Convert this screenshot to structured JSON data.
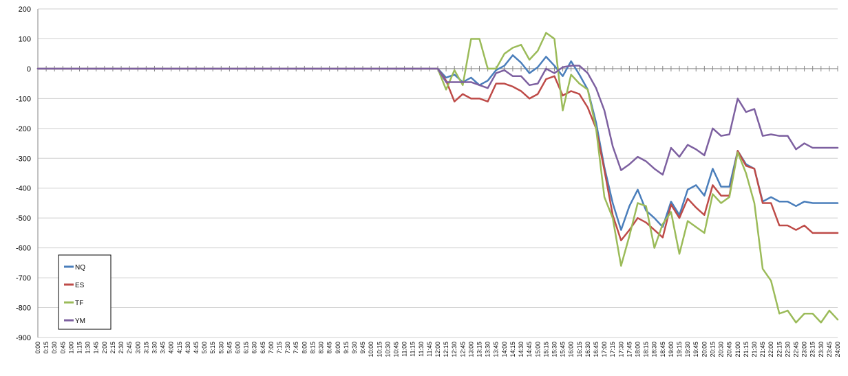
{
  "chart_data": {
    "type": "line",
    "title": "",
    "xlabel": "",
    "ylabel": "",
    "ylim": [
      -900,
      200
    ],
    "yticks": [
      200,
      100,
      0,
      -100,
      -200,
      -300,
      -400,
      -500,
      -600,
      -700,
      -800,
      -900
    ],
    "grid": "horizontal",
    "legend_position": "bottom-left",
    "x": [
      "0:00",
      "0:15",
      "0:30",
      "0:45",
      "1:00",
      "1:15",
      "1:30",
      "1:45",
      "2:00",
      "2:15",
      "2:30",
      "2:45",
      "3:00",
      "3:15",
      "3:30",
      "3:45",
      "4:00",
      "4:15",
      "4:30",
      "4:45",
      "5:00",
      "5:15",
      "5:30",
      "5:45",
      "6:00",
      "6:15",
      "6:30",
      "6:45",
      "7:00",
      "7:15",
      "7:30",
      "7:45",
      "8:00",
      "8:15",
      "8:30",
      "8:45",
      "9:00",
      "9:15",
      "9:30",
      "9:45",
      "10:00",
      "10:15",
      "10:30",
      "10:45",
      "11:00",
      "11:15",
      "11:30",
      "11:45",
      "12:00",
      "12:15",
      "12:30",
      "12:45",
      "13:00",
      "13:15",
      "13:30",
      "13:45",
      "14:00",
      "14:15",
      "14:30",
      "14:45",
      "15:00",
      "15:15",
      "15:30",
      "15:45",
      "16:00",
      "16:15",
      "16:30",
      "16:45",
      "17:00",
      "17:15",
      "17:30",
      "17:45",
      "18:00",
      "18:15",
      "18:30",
      "18:45",
      "19:00",
      "19:15",
      "19:30",
      "19:45",
      "20:00",
      "20:15",
      "20:30",
      "20:45",
      "21:00",
      "21:15",
      "21:30",
      "21:45",
      "22:00",
      "22:15",
      "22:30",
      "22:45",
      "23:00",
      "23:15",
      "23:30",
      "23:45",
      "24:00"
    ],
    "series": [
      {
        "name": "NQ",
        "color": "#4a7ebb",
        "values": [
          0,
          0,
          0,
          0,
          0,
          0,
          0,
          0,
          0,
          0,
          0,
          0,
          0,
          0,
          0,
          0,
          0,
          0,
          0,
          0,
          0,
          0,
          0,
          0,
          0,
          0,
          0,
          0,
          0,
          0,
          0,
          0,
          0,
          0,
          0,
          0,
          0,
          0,
          0,
          0,
          0,
          0,
          0,
          0,
          0,
          0,
          0,
          0,
          0,
          -30,
          -20,
          -45,
          -30,
          -55,
          -40,
          -5,
          10,
          45,
          20,
          -15,
          5,
          40,
          10,
          -25,
          25,
          -20,
          -70,
          -180,
          -330,
          -450,
          -540,
          -460,
          -405,
          -475,
          -500,
          -530,
          -445,
          -490,
          -405,
          -390,
          -425,
          -335,
          -395,
          -395,
          -275,
          -320,
          -335,
          -445,
          -430,
          -445,
          -445,
          -460,
          -445,
          -450,
          -450,
          -450,
          -450
        ]
      },
      {
        "name": "ES",
        "color": "#be4b48",
        "values": [
          0,
          0,
          0,
          0,
          0,
          0,
          0,
          0,
          0,
          0,
          0,
          0,
          0,
          0,
          0,
          0,
          0,
          0,
          0,
          0,
          0,
          0,
          0,
          0,
          0,
          0,
          0,
          0,
          0,
          0,
          0,
          0,
          0,
          0,
          0,
          0,
          0,
          0,
          0,
          0,
          0,
          0,
          0,
          0,
          0,
          0,
          0,
          0,
          0,
          -40,
          -110,
          -85,
          -100,
          -100,
          -110,
          -50,
          -50,
          -60,
          -75,
          -100,
          -85,
          -35,
          -25,
          -90,
          -75,
          -85,
          -130,
          -200,
          -340,
          -490,
          -575,
          -540,
          -500,
          -515,
          -540,
          -565,
          -455,
          -500,
          -435,
          -465,
          -490,
          -390,
          -425,
          -425,
          -275,
          -325,
          -335,
          -450,
          -450,
          -525,
          -525,
          -540,
          -525,
          -550,
          -550,
          -550,
          -550
        ]
      },
      {
        "name": "TF",
        "color": "#9bbb59",
        "values": [
          0,
          0,
          0,
          0,
          0,
          0,
          0,
          0,
          0,
          0,
          0,
          0,
          0,
          0,
          0,
          0,
          0,
          0,
          0,
          0,
          0,
          0,
          0,
          0,
          0,
          0,
          0,
          0,
          0,
          0,
          0,
          0,
          0,
          0,
          0,
          0,
          0,
          0,
          0,
          0,
          0,
          0,
          0,
          0,
          0,
          0,
          0,
          0,
          0,
          -70,
          -5,
          -55,
          100,
          100,
          0,
          0,
          50,
          70,
          80,
          30,
          60,
          120,
          100,
          -140,
          -20,
          -50,
          -70,
          -200,
          -430,
          -500,
          -660,
          -560,
          -450,
          -460,
          -600,
          -520,
          -480,
          -620,
          -510,
          -530,
          -550,
          -420,
          -450,
          -430,
          -280,
          -350,
          -450,
          -670,
          -710,
          -820,
          -810,
          -850,
          -820,
          -820,
          -850,
          -810,
          -840
        ]
      },
      {
        "name": "YM",
        "color": "#7d60a0",
        "values": [
          0,
          0,
          0,
          0,
          0,
          0,
          0,
          0,
          0,
          0,
          0,
          0,
          0,
          0,
          0,
          0,
          0,
          0,
          0,
          0,
          0,
          0,
          0,
          0,
          0,
          0,
          0,
          0,
          0,
          0,
          0,
          0,
          0,
          0,
          0,
          0,
          0,
          0,
          0,
          0,
          0,
          0,
          0,
          0,
          0,
          0,
          0,
          0,
          0,
          -45,
          -45,
          -45,
          -45,
          -55,
          -65,
          -15,
          -5,
          -25,
          -25,
          -55,
          -50,
          0,
          -15,
          5,
          10,
          10,
          -15,
          -65,
          -140,
          -260,
          -340,
          -320,
          -295,
          -310,
          -335,
          -355,
          -265,
          -295,
          -255,
          -270,
          -290,
          -200,
          -225,
          -220,
          -100,
          -145,
          -135,
          -225,
          -220,
          -225,
          -225,
          -270,
          -250,
          -265,
          -265,
          -265,
          -265
        ]
      }
    ]
  }
}
